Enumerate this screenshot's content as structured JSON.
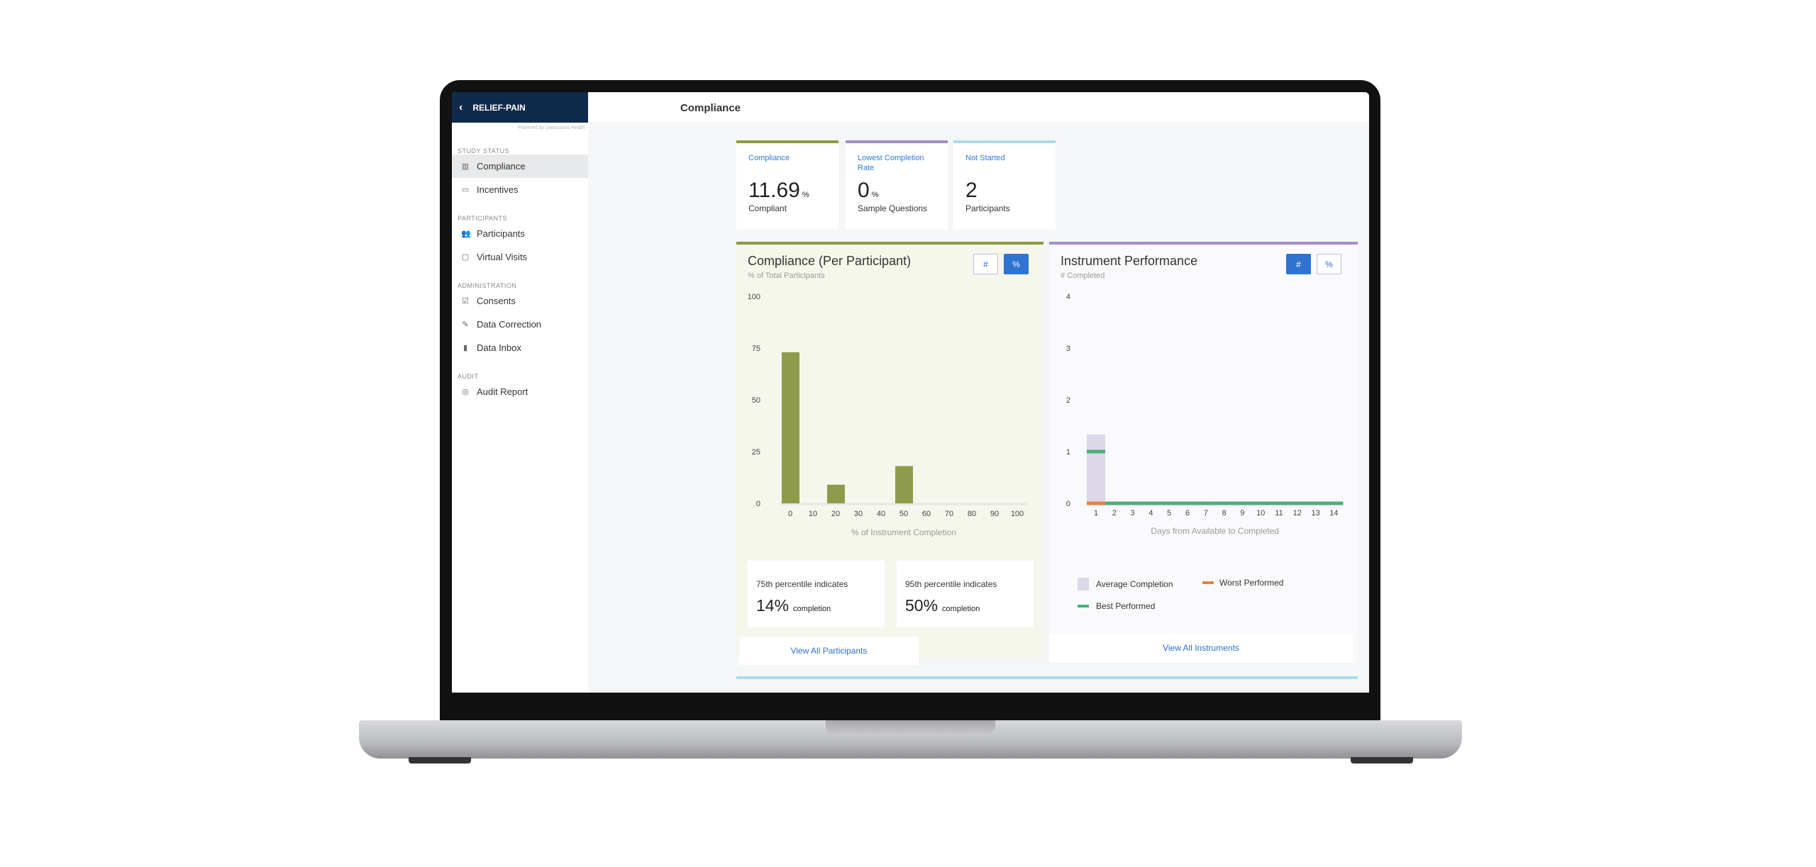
{
  "app": {
    "study": "RELIEF-PAIN",
    "powered_by": "Powered by Datacubed Health",
    "page_title": "Compliance"
  },
  "sidebar": {
    "sections": [
      {
        "label": "STUDY STATUS",
        "items": [
          {
            "label": "Compliance",
            "icon": "bar-chart-icon",
            "active": true
          },
          {
            "label": "Incentives",
            "icon": "card-icon"
          }
        ]
      },
      {
        "label": "PARTICIPANTS",
        "items": [
          {
            "label": "Participants",
            "icon": "people-icon"
          },
          {
            "label": "Virtual Visits",
            "icon": "chat-icon"
          }
        ]
      },
      {
        "label": "ADMINISTRATION",
        "items": [
          {
            "label": "Consents",
            "icon": "clipboard-check-icon"
          },
          {
            "label": "Data Correction",
            "icon": "edit-icon"
          },
          {
            "label": "Data Inbox",
            "icon": "inbox-alert-icon"
          }
        ]
      },
      {
        "label": "AUDIT",
        "items": [
          {
            "label": "Audit Report",
            "icon": "fingerprint-icon"
          }
        ]
      }
    ]
  },
  "stats": [
    {
      "label": "Compliance",
      "value": "11.69",
      "unit": "%",
      "sub": "Compliant",
      "color": "#8a9a45"
    },
    {
      "label": "Lowest Completion Rate",
      "value": "0",
      "unit": "%",
      "sub": "Sample Questions",
      "color": "#a58ec4"
    },
    {
      "label": "Not Started",
      "value": "2",
      "unit": "",
      "sub": "Participants",
      "color": "#a8dde8"
    }
  ],
  "compliance_panel": {
    "title": "Compliance (Per Participant)",
    "subtitle": "% of Total Participants",
    "toggle_count": "#",
    "toggle_percent": "%",
    "active_toggle": "%",
    "p75_label": "75th percentile indicates",
    "p75_value": "14%",
    "p95_label": "95th percentile indicates",
    "p95_value": "50%",
    "completion_word": "completion",
    "link": "View All Participants"
  },
  "instrument_panel": {
    "title": "Instrument Performance",
    "subtitle": "# Completed",
    "toggle_count": "#",
    "toggle_percent": "%",
    "active_toggle": "#",
    "legend": {
      "avg": "Average Completion",
      "worst": "Worst Performed",
      "best": "Best Performed"
    },
    "link": "View All Instruments"
  },
  "chart_data": [
    {
      "type": "bar",
      "categories": [
        "0",
        "10",
        "20",
        "30",
        "40",
        "50",
        "60",
        "70",
        "80",
        "90",
        "100"
      ],
      "values": [
        73,
        0,
        9,
        0,
        0,
        18,
        0,
        0,
        0,
        0,
        0
      ],
      "xlabel": "% of Instrument Completion",
      "ylabel": "% of Total Participants",
      "ylim": [
        0,
        100
      ],
      "yticks": [
        0,
        25,
        50,
        75,
        100
      ],
      "color": "#8e9b4a"
    },
    {
      "type": "bar",
      "categories": [
        "1",
        "2",
        "3",
        "4",
        "5",
        "6",
        "7",
        "8",
        "9",
        "10",
        "11",
        "12",
        "13",
        "14"
      ],
      "series": [
        {
          "name": "Average Completion",
          "values": [
            1.33,
            0,
            0,
            0,
            0,
            0,
            0,
            0,
            0,
            0,
            0,
            0,
            0,
            0
          ],
          "color": "#dcd8e8"
        },
        {
          "name": "Worst Performed",
          "values": [
            0,
            0,
            0,
            0,
            0,
            0,
            0,
            0,
            0,
            0,
            0,
            0,
            0,
            0
          ],
          "color": "#e8823a"
        },
        {
          "name": "Best Performed",
          "values": [
            1,
            0,
            0,
            0,
            0,
            0,
            0,
            0,
            0,
            0,
            0,
            0,
            0,
            0
          ],
          "color": "#4caf7a"
        }
      ],
      "xlabel": "Days from Available to Completed",
      "ylabel": "# Completed",
      "ylim": [
        0,
        4
      ],
      "yticks": [
        0,
        1,
        2,
        3,
        4
      ]
    }
  ]
}
